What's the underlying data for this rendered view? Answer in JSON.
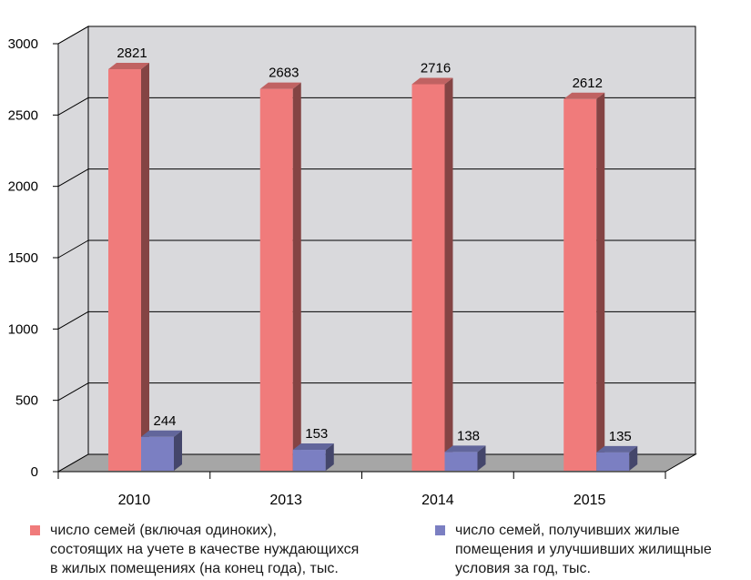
{
  "chart_data": {
    "type": "bar",
    "categories": [
      "2010",
      "2013",
      "2014",
      "2015"
    ],
    "series": [
      {
        "name": "число семей (включая одиноких), состоящих на учете в качестве нуждающихся в жилых помещениях (на конец года), тыс.",
        "name_lines": [
          "число семей (включая одиноких),",
          "состоящих на учете в качестве нуждающихся",
          "в жилых помещениях (на конец года), тыс."
        ],
        "values": [
          2821,
          2683,
          2716,
          2612
        ],
        "color": "#f07b7b"
      },
      {
        "name": "число семей, получивших жилые помещения и улучшивших жилищные условия за год, тыс.",
        "name_lines": [
          "число семей, получивших жилые",
          "помещения и улучшивших жилищные",
          "условия за год, тыс."
        ],
        "values": [
          244,
          153,
          138,
          135
        ],
        "color": "#7b7fc2"
      }
    ],
    "y_ticks": [
      "0",
      "500",
      "1000",
      "1500",
      "2000",
      "2500",
      "3000"
    ],
    "ylim": [
      0,
      3000
    ],
    "grid": true,
    "legend_position": "bottom",
    "wall_color": "#d9d9dc",
    "floor_color": "#a6a6a6"
  }
}
